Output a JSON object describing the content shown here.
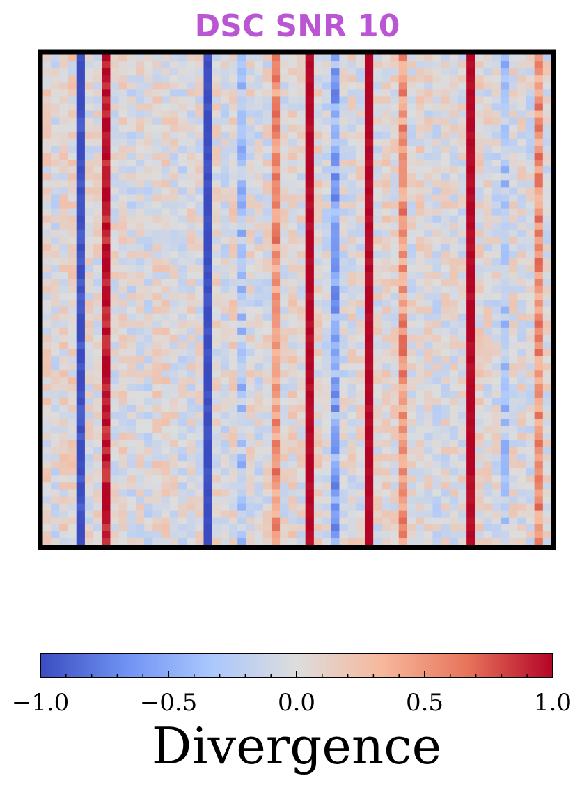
{
  "chart_data": {
    "type": "heatmap",
    "title": "DSC SNR 10",
    "title_color": "#BA55D3",
    "colormap": "coolwarm",
    "colormap_stops": [
      "#3B4CC0",
      "#6F92F3",
      "#AAC7FD",
      "#DDDDDD",
      "#F7B89C",
      "#E7745B",
      "#B40426"
    ],
    "vmin": -1.0,
    "vmax": 1.0,
    "n_rows": 70,
    "n_cols": 60,
    "column_means": [
      0.05,
      -0.05,
      0.05,
      0.08,
      -1.0,
      0.0,
      0.0,
      0.95,
      0.0,
      0.05,
      -0.05,
      0.0,
      -0.05,
      0.05,
      0.05,
      0.0,
      -0.05,
      0.0,
      0.0,
      -1.0,
      0.0,
      -0.05,
      0.05,
      -0.3,
      0.0,
      -0.05,
      0.0,
      0.5,
      0.0,
      0.05,
      0.0,
      1.0,
      0.05,
      -0.05,
      -0.5,
      -0.05,
      0.0,
      0.0,
      1.0,
      0.0,
      0.05,
      0.05,
      0.5,
      0.0,
      0.05,
      0.0,
      -0.05,
      0.0,
      0.0,
      0.0,
      1.0,
      0.05,
      0.0,
      -0.05,
      -0.3,
      0.0,
      0.0,
      -0.05,
      0.5,
      0.0
    ],
    "column_noise": [
      0.1,
      0.1,
      0.1,
      0.1,
      0.05,
      0.1,
      0.1,
      0.06,
      0.1,
      0.1,
      0.1,
      0.1,
      0.1,
      0.1,
      0.1,
      0.1,
      0.1,
      0.1,
      0.1,
      0.03,
      0.1,
      0.1,
      0.1,
      0.12,
      0.1,
      0.1,
      0.1,
      0.1,
      0.1,
      0.1,
      0.1,
      0.02,
      0.1,
      0.1,
      0.13,
      0.1,
      0.1,
      0.1,
      0.02,
      0.1,
      0.1,
      0.1,
      0.1,
      0.1,
      0.1,
      0.1,
      0.1,
      0.1,
      0.1,
      0.1,
      0.02,
      0.1,
      0.1,
      0.1,
      0.12,
      0.1,
      0.1,
      0.1,
      0.1,
      0.1
    ],
    "colorbar": {
      "label": "Divergence",
      "ticks": [
        "−1.0",
        "−0.5",
        "0.0",
        "0.5",
        "1.0"
      ],
      "tick_values": [
        -1.0,
        -0.5,
        0.0,
        0.5,
        1.0
      ]
    },
    "grid": false,
    "axis_ticks": false
  }
}
